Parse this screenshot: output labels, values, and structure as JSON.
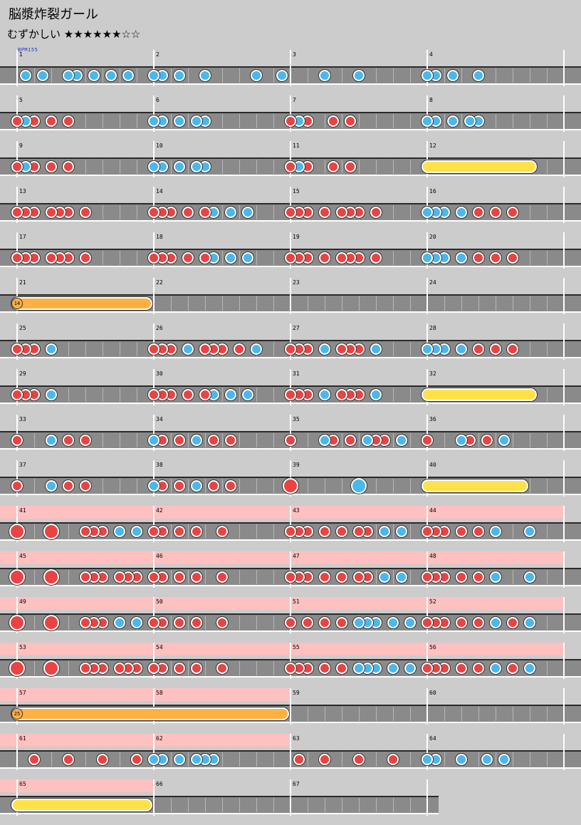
{
  "song_title": "脳漿炸裂ガール",
  "difficulty": {
    "label": "むずかしい",
    "stars": "★★★★★★☆☆"
  },
  "bpm_label": "BPM155",
  "colors": {
    "don": "#e94343",
    "ka": "#4ab8ec",
    "drumroll": "#ffe24a",
    "balloon": "#ffb040",
    "gogo": "#ffc0c0"
  },
  "measures": [
    {
      "n": 1,
      "gogo": false,
      "notes": "0k0k00kk0k0k0k00"
    },
    {
      "n": 2,
      "gogo": false,
      "notes": "kk0k00k00000k00k"
    },
    {
      "n": 3,
      "gogo": false,
      "notes": "0000k000k0000000"
    },
    {
      "n": 4,
      "gogo": false,
      "notes": "kk0k00k000000000"
    },
    {
      "n": 5,
      "gogo": false,
      "notes": "dkd0d0d000000000"
    },
    {
      "n": 6,
      "gogo": false,
      "notes": "kk0k0kk000000000"
    },
    {
      "n": 7,
      "gogo": false,
      "notes": "dkd00d0d00000000"
    },
    {
      "n": 8,
      "gogo": false,
      "notes": "kk0k0kk000000000"
    },
    {
      "n": 9,
      "gogo": false,
      "notes": "dkd0d0d000000000"
    },
    {
      "n": 10,
      "gogo": false,
      "notes": "kk0k0kk000000000"
    },
    {
      "n": 11,
      "gogo": false,
      "notes": "dkd00d0d00000000"
    },
    {
      "n": 12,
      "gogo": false,
      "roll": {
        "type": "drumroll",
        "len": 13
      }
    },
    {
      "n": 13,
      "gogo": false,
      "notes": "ddd0ddd0d0000000"
    },
    {
      "n": 14,
      "gogo": false,
      "notes": "ddd0d0dk0k0k0000"
    },
    {
      "n": 15,
      "gogo": false,
      "notes": "ddd0d0ddd0d00000"
    },
    {
      "n": 16,
      "gogo": false,
      "notes": "kkk0k0d0d0d00000"
    },
    {
      "n": 17,
      "gogo": false,
      "notes": "ddd0ddd0d0000000"
    },
    {
      "n": 18,
      "gogo": false,
      "notes": "ddd0d0dk0k0k0000"
    },
    {
      "n": 19,
      "gogo": false,
      "notes": "ddd0d0ddd0d00000"
    },
    {
      "n": 20,
      "gogo": false,
      "notes": "kkk0k0d0d0d00000"
    },
    {
      "n": 21,
      "gogo": false,
      "roll": {
        "type": "balloon",
        "len": 16,
        "count": "14"
      }
    },
    {
      "n": 22,
      "gogo": false,
      "notes": "0000000000000000"
    },
    {
      "n": 23,
      "gogo": false,
      "notes": "0000000000000000"
    },
    {
      "n": 24,
      "gogo": false,
      "notes": "0000000000000000"
    },
    {
      "n": 25,
      "gogo": false,
      "notes": "ddd0k00000000000"
    },
    {
      "n": 26,
      "gogo": false,
      "notes": "ddd0k0ddd0d0k000"
    },
    {
      "n": 27,
      "gogo": false,
      "notes": "ddd0k0ddd0k00000"
    },
    {
      "n": 28,
      "gogo": false,
      "notes": "kkk0k0d0d0d00000"
    },
    {
      "n": 29,
      "gogo": false,
      "notes": "ddd0k00000000000"
    },
    {
      "n": 30,
      "gogo": false,
      "notes": "ddd0d0dk0k0k0000"
    },
    {
      "n": 31,
      "gogo": false,
      "notes": "ddd0k0ddd0k00000"
    },
    {
      "n": 32,
      "gogo": false,
      "roll": {
        "type": "drumroll",
        "len": 13
      }
    },
    {
      "n": 33,
      "gogo": false,
      "notes": "d000k0d0d0000000"
    },
    {
      "n": 34,
      "gogo": false,
      "notes": "kd0d0k0d0d000000"
    },
    {
      "n": 35,
      "gogo": false,
      "notes": "d000kd0d0kdd0k00"
    },
    {
      "n": 36,
      "gogo": false,
      "notes": "d000kd0d0k000000"
    },
    {
      "n": 37,
      "gogo": false,
      "notes": "d000k0d0d0000000"
    },
    {
      "n": 38,
      "gogo": false,
      "notes": "kd0d0k0d0d000000"
    },
    {
      "n": 39,
      "gogo": false,
      "notes": "D0000000K0000000"
    },
    {
      "n": 40,
      "gogo": false,
      "roll": {
        "type": "drumroll",
        "len": 12
      }
    },
    {
      "n": 41,
      "gogo": true,
      "notes": "D000D000ddd0k0k0"
    },
    {
      "n": 42,
      "gogo": true,
      "notes": "dd0d0d00d0000000"
    },
    {
      "n": 43,
      "gogo": true,
      "notes": "ddd0d0d0dd0k0k00"
    },
    {
      "n": 44,
      "gogo": true,
      "notes": "ddd0d0d0k000k000"
    },
    {
      "n": 45,
      "gogo": true,
      "notes": "D000D000ddd0ddd0"
    },
    {
      "n": 46,
      "gogo": true,
      "notes": "dd0d0d00d0000000"
    },
    {
      "n": 47,
      "gogo": true,
      "notes": "ddd0d0d0dd0k0k00"
    },
    {
      "n": 48,
      "gogo": true,
      "notes": "ddd0d0d0k000k000"
    },
    {
      "n": 49,
      "gogo": true,
      "notes": "D000D000ddd0k0k0"
    },
    {
      "n": 50,
      "gogo": true,
      "notes": "dd0d0d00d0000000"
    },
    {
      "n": 51,
      "gogo": true,
      "notes": "d0d0d0d0kkk0k0k0"
    },
    {
      "n": 52,
      "gogo": true,
      "notes": "ddd0d0d0k0d0k000"
    },
    {
      "n": 53,
      "gogo": true,
      "notes": "D000D000ddd0ddd0"
    },
    {
      "n": 54,
      "gogo": true,
      "notes": "dd0d0d00d0000000"
    },
    {
      "n": 55,
      "gogo": true,
      "notes": "ddd0d0d0kkk0k0k0"
    },
    {
      "n": 56,
      "gogo": true,
      "notes": "ddd0d0d0k0d0k000"
    },
    {
      "n": 57,
      "gogo": true,
      "roll": {
        "type": "balloon",
        "len": 32,
        "count": "25"
      }
    },
    {
      "n": 58,
      "gogo": true,
      "notes": "0000000000000000"
    },
    {
      "n": 59,
      "gogo": false,
      "notes": "0000000000000000"
    },
    {
      "n": 60,
      "gogo": false,
      "notes": "0000000000000000"
    },
    {
      "n": 61,
      "gogo": true,
      "notes": "00d000d000d000d0"
    },
    {
      "n": 62,
      "gogo": true,
      "notes": "kk0k0kkk00000000"
    },
    {
      "n": 63,
      "gogo": false,
      "notes": "0d00d000d000d000"
    },
    {
      "n": 64,
      "gogo": false,
      "notes": "kk00k00k0k000000"
    },
    {
      "n": 65,
      "gogo": true,
      "roll": {
        "type": "drumroll",
        "len": 16
      }
    },
    {
      "n": 66,
      "gogo": false,
      "notes": "0000000000000000"
    },
    {
      "n": 67,
      "gogo": false,
      "notes": "0000000000000000"
    }
  ]
}
